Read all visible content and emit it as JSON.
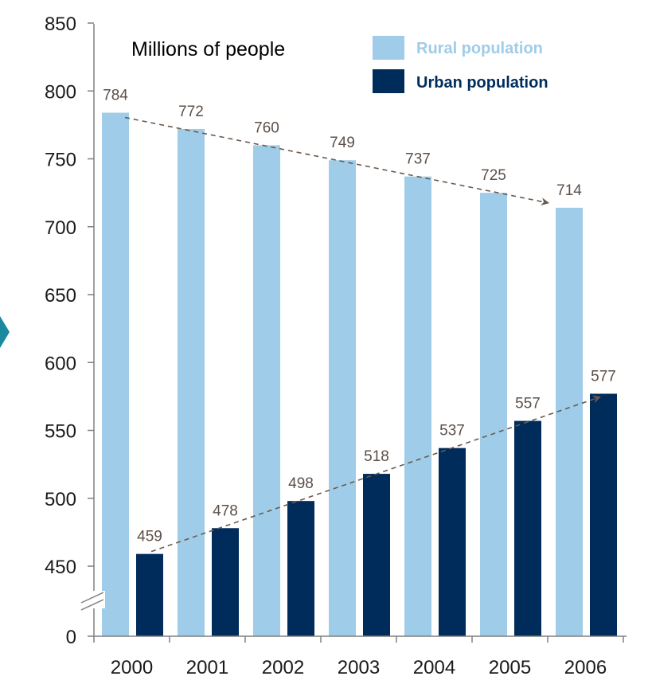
{
  "chart_data": {
    "type": "bar",
    "unit_label": "Millions of people",
    "categories": [
      "2000",
      "2001",
      "2002",
      "2003",
      "2004",
      "2005",
      "2006"
    ],
    "series": [
      {
        "name": "Rural population",
        "color": "#9fcce8",
        "values": [
          784,
          772,
          760,
          749,
          737,
          725,
          714
        ]
      },
      {
        "name": "Urban population",
        "color": "#002c5c",
        "values": [
          459,
          478,
          498,
          518,
          537,
          557,
          577
        ]
      }
    ],
    "yticks": [
      0,
      450,
      500,
      550,
      600,
      650,
      700,
      750,
      800,
      850
    ],
    "ylim": [
      0,
      850
    ],
    "y_axis_break": "between 0 and 450",
    "trend_arrows": [
      {
        "series": "Rural population",
        "direction": "decreasing",
        "color": "#6b5a4e",
        "style": "dashed"
      },
      {
        "series": "Urban population",
        "direction": "increasing",
        "color": "#6b5a4e",
        "style": "dashed"
      }
    ],
    "legend_position": "top-right",
    "grid": false
  },
  "decoration": {
    "side_marker_color": "#1b8a9e"
  }
}
